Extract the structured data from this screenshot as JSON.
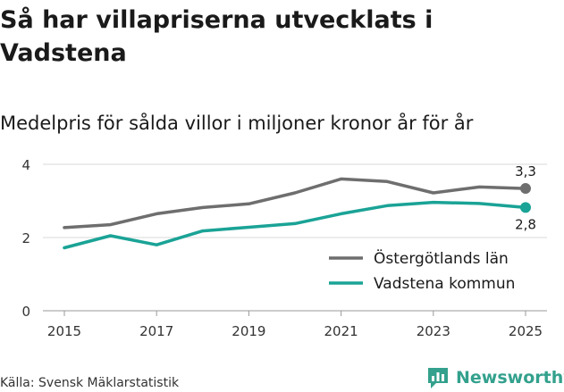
{
  "header": {
    "title": "Så har villapriserna utvecklats i Vadstena",
    "subtitle": "Medelpris för sålda villor i miljoner kronor år för år"
  },
  "footer": {
    "source": "Källa: Svensk Mäklarstatistik",
    "brand": "Newsworthy",
    "brand_color": "#33a18d",
    "brand_icon": "newsworthy-logo-icon"
  },
  "chart_data": {
    "type": "line",
    "title": "Så har villapriserna utvecklats i Vadstena",
    "subtitle": "Medelpris för sålda villor i miljoner kronor år för år",
    "xlabel": "",
    "ylabel": "",
    "x": [
      2015,
      2016,
      2017,
      2018,
      2019,
      2020,
      2021,
      2022,
      2023,
      2024,
      2025
    ],
    "x_ticks": [
      "2015",
      "2017",
      "2019",
      "2021",
      "2023",
      "2025"
    ],
    "y_ticks": [
      "0",
      "2",
      "4"
    ],
    "ylim": [
      0,
      4
    ],
    "grid": true,
    "legend_position": "bottom-right",
    "series": [
      {
        "name": "Östergötlands län",
        "color": "#6e6e6e",
        "values": [
          2.27,
          2.35,
          2.65,
          2.82,
          2.92,
          3.22,
          3.6,
          3.53,
          3.22,
          3.38,
          3.34
        ],
        "end_label": "3,3"
      },
      {
        "name": "Vadstena kommun",
        "color": "#1aa396",
        "values": [
          1.72,
          2.05,
          1.8,
          2.18,
          2.28,
          2.38,
          2.65,
          2.87,
          2.96,
          2.93,
          2.82
        ],
        "end_label": "2,8"
      }
    ]
  }
}
